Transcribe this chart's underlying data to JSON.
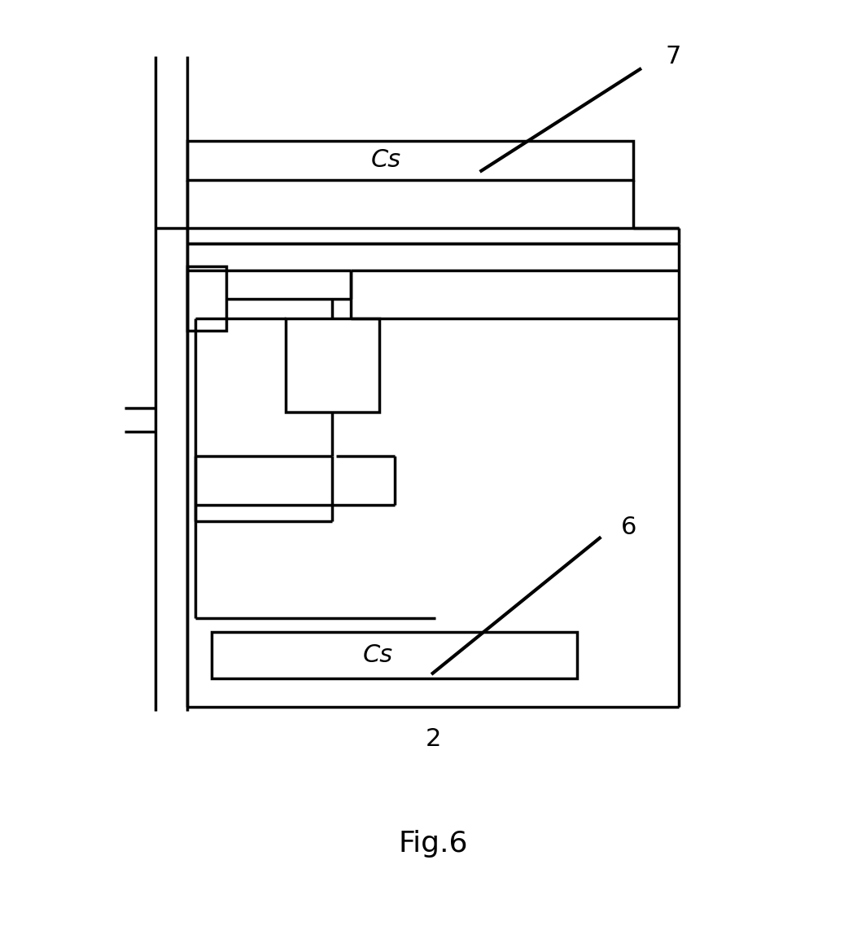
{
  "bg_color": "#ffffff",
  "line_color": "#000000",
  "lw": 2.5,
  "lw_thin": 1.5,
  "fig_width": 10.64,
  "fig_height": 11.53,
  "fig_label": "Fig.6",
  "label_7": "7",
  "label_6": "6",
  "label_2": "2",
  "cs_text": "Cs",
  "fontsize_cs": 22,
  "fontsize_label": 22,
  "fontsize_fig": 26
}
